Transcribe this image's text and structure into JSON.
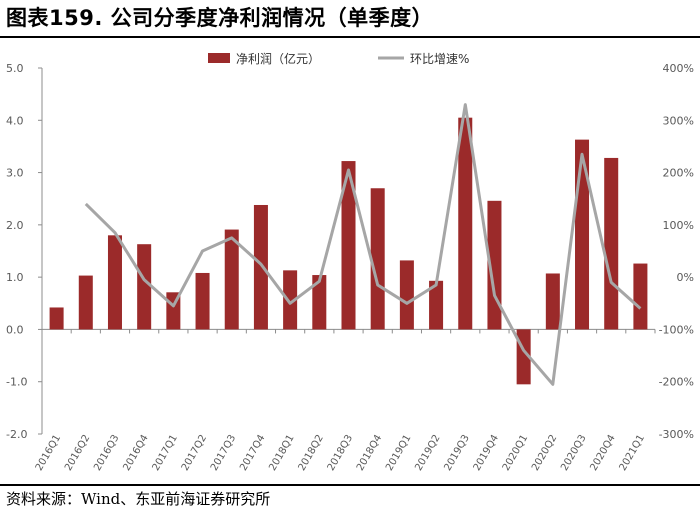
{
  "header": {
    "title": "图表159. 公司分季度净利润情况（单季度）"
  },
  "footer": {
    "source": "资料来源：Wind、东亚前海证券研究所"
  },
  "colors": {
    "bar": "#9b2a2a",
    "line": "#a6a6a6",
    "axis": "#8c8c8c",
    "text": "#595959"
  },
  "chart_data": {
    "type": "bar",
    "categories": [
      "2016Q1",
      "2016Q2",
      "2016Q3",
      "2016Q4",
      "2017Q1",
      "2017Q2",
      "2017Q3",
      "2017Q4",
      "2018Q1",
      "2018Q2",
      "2018Q3",
      "2018Q4",
      "2019Q1",
      "2019Q2",
      "2019Q3",
      "2019Q4",
      "2020Q1",
      "2020Q2",
      "2020Q3",
      "2020Q4",
      "2021Q1"
    ],
    "series": [
      {
        "name": "净利润（亿元）",
        "type": "bar",
        "axis": "left",
        "values": [
          0.42,
          1.03,
          1.8,
          1.63,
          0.71,
          1.08,
          1.91,
          2.38,
          1.13,
          1.04,
          3.22,
          2.7,
          1.32,
          0.93,
          4.05,
          2.46,
          -1.05,
          1.07,
          3.63,
          3.28,
          1.26
        ]
      },
      {
        "name": "环比增速%",
        "type": "line",
        "axis": "right",
        "values": [
          null,
          140,
          85,
          -5,
          -55,
          50,
          75,
          25,
          -50,
          -8,
          205,
          -15,
          -50,
          -15,
          330,
          -35,
          -140,
          -205,
          235,
          -10,
          -60
        ]
      }
    ],
    "y_left": {
      "min": -2.0,
      "max": 5.0,
      "step": 1.0,
      "tick_labels": [
        "-2.0",
        "-1.0",
        "0.0",
        "1.0",
        "2.0",
        "3.0",
        "4.0",
        "5.0"
      ]
    },
    "y_right": {
      "min": -300,
      "max": 400,
      "step": 100,
      "tick_labels": [
        "-300%",
        "-200%",
        "-100%",
        "0%",
        "100%",
        "200%",
        "300%",
        "400%"
      ]
    },
    "legend_position": "top-center",
    "grid": false
  }
}
